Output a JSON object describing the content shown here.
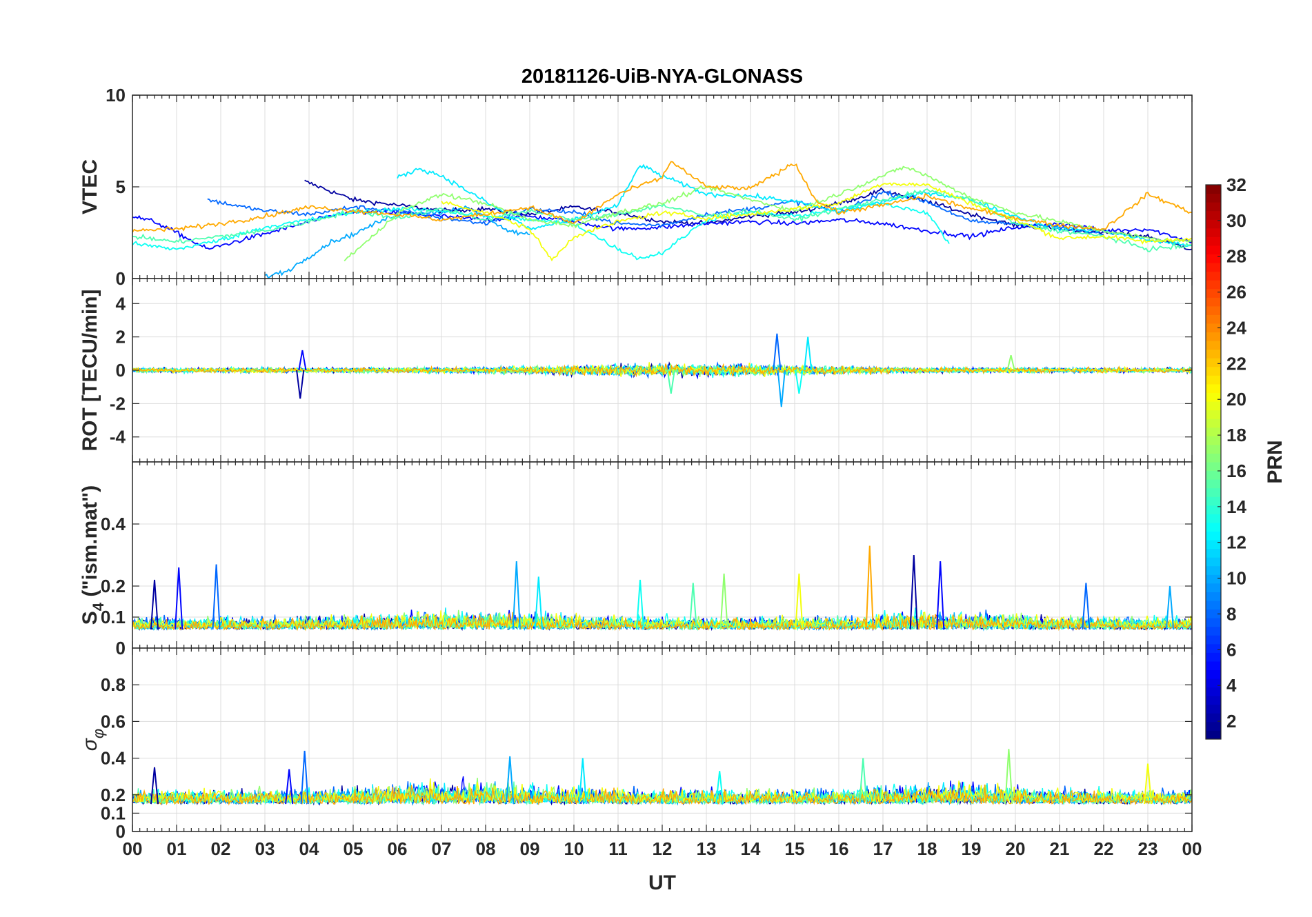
{
  "chart_data": {
    "type": "line",
    "title": "20181126-UiB-NYA-GLONASS",
    "xlabel": "UT",
    "x_range": [
      0,
      24
    ],
    "x_ticks": [
      "00",
      "01",
      "02",
      "03",
      "04",
      "05",
      "06",
      "07",
      "08",
      "09",
      "10",
      "11",
      "12",
      "13",
      "14",
      "15",
      "16",
      "17",
      "18",
      "19",
      "20",
      "21",
      "22",
      "23",
      "00"
    ],
    "panels": [
      {
        "name": "vtec",
        "ylabel": "VTEC",
        "ylim": [
          0,
          10
        ],
        "yticks": [
          "0",
          "5",
          "10"
        ],
        "ytick_values": [
          0,
          5,
          10
        ],
        "series": [
          {
            "prn": 2,
            "x": [
              3.9,
              5,
              6,
              7,
              8,
              9,
              10,
              11,
              12,
              13,
              14,
              15,
              16,
              17,
              18,
              19,
              20,
              21,
              22,
              23,
              24
            ],
            "y": [
              5.3,
              4.3,
              4.0,
              3.7,
              3.8,
              3.5,
              3.9,
              3.6,
              3.1,
              3.0,
              3.4,
              3.6,
              4.1,
              4.8,
              4.2,
              3.5,
              2.9,
              2.7,
              2.5,
              2.3,
              1.6
            ]
          },
          {
            "prn": 5,
            "x": [
              0,
              0.5,
              1,
              1.7,
              4.8,
              6,
              7,
              8,
              9,
              10,
              11,
              12,
              13,
              14,
              15,
              16,
              17,
              18,
              19,
              20,
              21,
              22,
              23,
              24
            ],
            "y": [
              3.4,
              3.1,
              2.5,
              1.6,
              3.6,
              3.6,
              3.4,
              3.2,
              3.4,
              3.1,
              2.7,
              2.8,
              3.0,
              3.1,
              3.0,
              3.2,
              3.0,
              2.6,
              2.3,
              2.8,
              3.0,
              2.6,
              2.7,
              2.0
            ]
          },
          {
            "prn": 8,
            "x": [
              1.7,
              2.5,
              3,
              4,
              5,
              6,
              7,
              8,
              9,
              10,
              11,
              12,
              13,
              14,
              15,
              16,
              17,
              18,
              19,
              20,
              21,
              22
            ],
            "y": [
              4.3,
              3.9,
              3.7,
              3.5,
              3.9,
              3.7,
              3.3,
              3.0,
              3.8,
              3.6,
              3.0,
              2.9,
              3.5,
              3.8,
              4.2,
              3.6,
              4.7,
              4.2,
              3.1,
              3.0,
              2.8,
              2.4
            ]
          },
          {
            "prn": 10,
            "x": [
              3,
              3.5,
              4,
              4.5,
              5,
              5.5,
              6,
              6.5,
              7,
              7.5,
              8,
              8.5,
              9
            ],
            "y": [
              0.1,
              0.4,
              1.2,
              2.0,
              2.4,
              3.0,
              3.5,
              3.6,
              3.6,
              3.9,
              3.4,
              2.6,
              2.4
            ]
          },
          {
            "prn": 12,
            "x": [
              6,
              6.5,
              7,
              8,
              9,
              10,
              11,
              11.5,
              12,
              13,
              14,
              15,
              16,
              17,
              18,
              19,
              20,
              21,
              22,
              23,
              24
            ],
            "y": [
              5.5,
              6.0,
              5.6,
              4.2,
              2.7,
              3.2,
              4.0,
              6.2,
              5.6,
              4.6,
              4.5,
              4.2,
              3.6,
              4.2,
              4.7,
              4.3,
              3.4,
              2.7,
              2.6,
              2.1,
              1.8
            ]
          },
          {
            "prn": 13,
            "x": [
              0,
              1,
              2,
              3,
              4,
              5,
              6,
              7,
              8,
              9,
              10,
              11,
              11.5,
              12,
              13,
              14,
              15,
              16,
              17,
              18,
              18.5
            ],
            "y": [
              1.9,
              1.6,
              2.1,
              2.8,
              3.2,
              3.6,
              3.8,
              3.7,
              3.4,
              3.2,
              3.0,
              1.6,
              1.1,
              1.4,
              3.2,
              3.6,
              3.4,
              3.8,
              4.1,
              3.6,
              1.9
            ]
          },
          {
            "prn": 15,
            "x": [
              0,
              1,
              2,
              3,
              4,
              5,
              6,
              7,
              8,
              9,
              10,
              11,
              12,
              13,
              14,
              15,
              16,
              17,
              18,
              19,
              20,
              21,
              22,
              23,
              24
            ],
            "y": [
              2.3,
              2.0,
              2.3,
              2.6,
              3.1,
              3.7,
              3.3,
              3.8,
              3.2,
              3.7,
              3.2,
              3.5,
              4.0,
              3.4,
              3.7,
              3.2,
              3.8,
              4.3,
              4.8,
              4.3,
              3.0,
              2.6,
              2.3,
              1.6,
              1.8
            ]
          },
          {
            "prn": 17,
            "x": [
              4.8,
              5.5,
              6,
              7,
              8,
              9,
              10,
              11,
              12,
              13,
              14,
              15,
              16,
              17,
              17.5,
              18,
              19,
              20,
              21,
              22,
              23,
              24
            ],
            "y": [
              1.0,
              2.4,
              3.6,
              4.6,
              4.1,
              3.2,
              2.9,
              3.6,
              4.1,
              5.0,
              4.3,
              3.7,
              4.6,
              5.6,
              6.1,
              5.6,
              4.4,
              3.6,
              3.1,
              2.6,
              2.2,
              2.0
            ]
          },
          {
            "prn": 20,
            "x": [
              7,
              8,
              9,
              9.5,
              10,
              11,
              12,
              13,
              14,
              15,
              16,
              17,
              18,
              19,
              20,
              21,
              22,
              23,
              24
            ],
            "y": [
              4.2,
              3.6,
              2.7,
              1.0,
              2.3,
              3.1,
              3.6,
              3.3,
              3.5,
              3.8,
              4.1,
              5.2,
              5.1,
              4.1,
              3.2,
              2.2,
              2.3,
              2.0,
              2.2
            ]
          },
          {
            "prn": 23,
            "x": [
              0,
              1,
              2,
              3,
              4,
              5,
              6,
              7,
              8,
              9,
              10,
              11,
              12,
              12.2,
              13,
              14,
              15,
              15.5,
              16,
              17,
              18,
              19,
              20,
              21,
              22,
              23,
              24
            ],
            "y": [
              2.6,
              2.7,
              3.0,
              3.4,
              3.9,
              3.7,
              3.5,
              3.2,
              3.5,
              3.9,
              3.0,
              4.6,
              5.5,
              6.4,
              5.0,
              4.9,
              6.3,
              4.2,
              3.6,
              4.0,
              4.5,
              3.8,
              3.3,
              2.9,
              2.7,
              4.6,
              3.6
            ]
          }
        ]
      },
      {
        "name": "rot",
        "ylabel": "ROT [TECU/min]",
        "ylim": [
          -5.5,
          5.5
        ],
        "yticks": [
          "-4",
          "-2",
          "0",
          "2",
          "4"
        ],
        "ytick_values": [
          -4,
          -2,
          0,
          2,
          4
        ],
        "base": 0,
        "noise_amplitude": 0.45,
        "spikes": [
          {
            "x": 3.8,
            "y": -1.7
          },
          {
            "x": 3.85,
            "y": 1.2
          },
          {
            "x": 14.6,
            "y": 2.2
          },
          {
            "x": 14.7,
            "y": -2.2
          },
          {
            "x": 15.3,
            "y": 2.0
          },
          {
            "x": 15.1,
            "y": -1.4
          },
          {
            "x": 12.2,
            "y": -1.4
          },
          {
            "x": 19.9,
            "y": 0.9
          }
        ]
      },
      {
        "name": "s4",
        "ylabel": "S4 (\"ism.mat\")",
        "ylabel_main": "S",
        "ylabel_sub": "4",
        "ylabel_rest": " (\"ism.mat\")",
        "ylim": [
          0,
          0.6
        ],
        "yticks": [
          "0",
          "0.1",
          "0.2",
          "0.4"
        ],
        "ytick_values": [
          0,
          0.1,
          0.2,
          0.4
        ],
        "base": 0.06,
        "noise_amplitude": 0.05,
        "spikes": [
          {
            "x": 0.5,
            "y": 0.22
          },
          {
            "x": 1.05,
            "y": 0.26
          },
          {
            "x": 1.9,
            "y": 0.27
          },
          {
            "x": 8.7,
            "y": 0.28
          },
          {
            "x": 9.2,
            "y": 0.23
          },
          {
            "x": 11.5,
            "y": 0.22
          },
          {
            "x": 12.7,
            "y": 0.21
          },
          {
            "x": 13.4,
            "y": 0.24
          },
          {
            "x": 15.1,
            "y": 0.24
          },
          {
            "x": 16.7,
            "y": 0.33
          },
          {
            "x": 17.7,
            "y": 0.3
          },
          {
            "x": 18.3,
            "y": 0.28
          },
          {
            "x": 21.6,
            "y": 0.21
          },
          {
            "x": 23.5,
            "y": 0.2
          }
        ]
      },
      {
        "name": "sigma-phi",
        "ylabel": "σφ",
        "ylabel_main": "σ",
        "ylabel_sub": "φ",
        "ylim": [
          0,
          1
        ],
        "yticks": [
          "0",
          "0.1",
          "0.2",
          "0.4",
          "0.6",
          "0.8"
        ],
        "ytick_values": [
          0,
          0.1,
          0.2,
          0.4,
          0.6,
          0.8
        ],
        "base": 0.15,
        "noise_amplitude": 0.1,
        "spikes": [
          {
            "x": 0.5,
            "y": 0.35
          },
          {
            "x": 3.55,
            "y": 0.34
          },
          {
            "x": 3.9,
            "y": 0.44
          },
          {
            "x": 8.55,
            "y": 0.41
          },
          {
            "x": 10.2,
            "y": 0.4
          },
          {
            "x": 13.3,
            "y": 0.33
          },
          {
            "x": 16.55,
            "y": 0.4
          },
          {
            "x": 19.85,
            "y": 0.45
          },
          {
            "x": 23.0,
            "y": 0.37
          }
        ]
      }
    ],
    "colorbar": {
      "label": "PRN",
      "range": [
        1,
        32
      ],
      "ticks": [
        "2",
        "4",
        "6",
        "8",
        "10",
        "12",
        "14",
        "16",
        "18",
        "20",
        "22",
        "24",
        "26",
        "28",
        "30",
        "32"
      ],
      "tick_values": [
        2,
        4,
        6,
        8,
        10,
        12,
        14,
        16,
        18,
        20,
        22,
        24,
        26,
        28,
        30,
        32
      ],
      "colormap": "jet"
    },
    "noise_prns": [
      2,
      5,
      8,
      10,
      12,
      13,
      15,
      17,
      20,
      23
    ]
  }
}
